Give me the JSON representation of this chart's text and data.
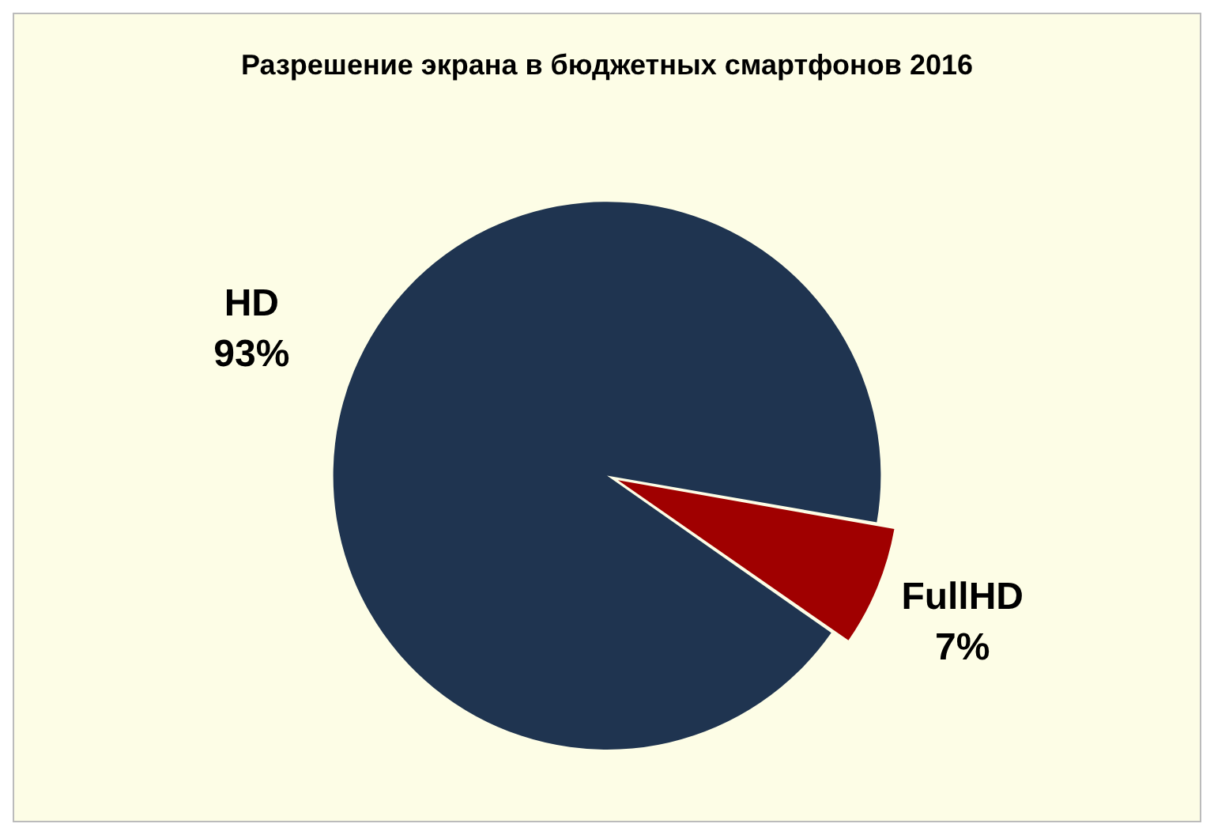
{
  "chart_data": {
    "type": "pie",
    "title": "Разрешение экрана в бюджетных смартфонов 2016",
    "categories": [
      "HD",
      "FullHD"
    ],
    "values": [
      93,
      7
    ],
    "colors": [
      "#1f3450",
      "#a00000"
    ],
    "value_labels": [
      "93%",
      "7%"
    ],
    "legend": false
  }
}
